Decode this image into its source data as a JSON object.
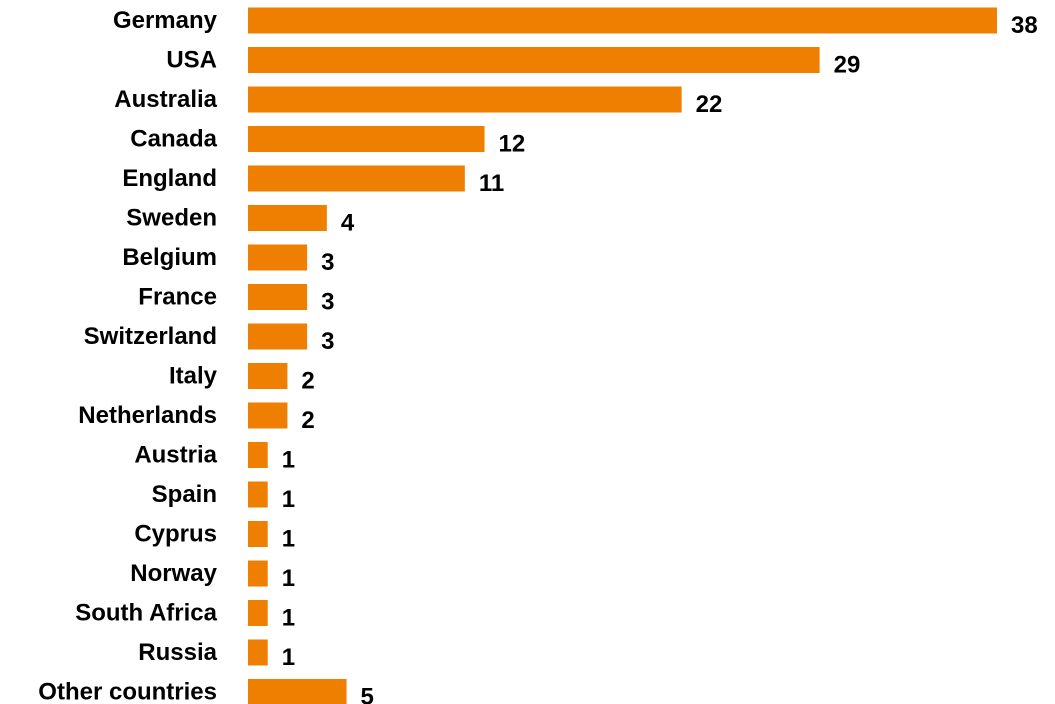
{
  "chart_data": {
    "type": "bar",
    "orientation": "horizontal",
    "categories": [
      "Germany",
      "USA",
      "Australia",
      "Canada",
      "England",
      "Sweden",
      "Belgium",
      "France",
      "Switzerland",
      "Italy",
      "Netherlands",
      "Austria",
      "Spain",
      "Cyprus",
      "Norway",
      "South Africa",
      "Russia",
      "Other countries"
    ],
    "values": [
      38,
      29,
      22,
      12,
      11,
      4,
      3,
      3,
      3,
      2,
      2,
      1,
      1,
      1,
      1,
      1,
      1,
      5
    ],
    "title": "",
    "xlabel": "",
    "ylabel": "",
    "xlim": [
      0,
      38
    ],
    "grid": false,
    "legend": "none",
    "bar_color": "#EE7F00",
    "data_labels": true
  }
}
